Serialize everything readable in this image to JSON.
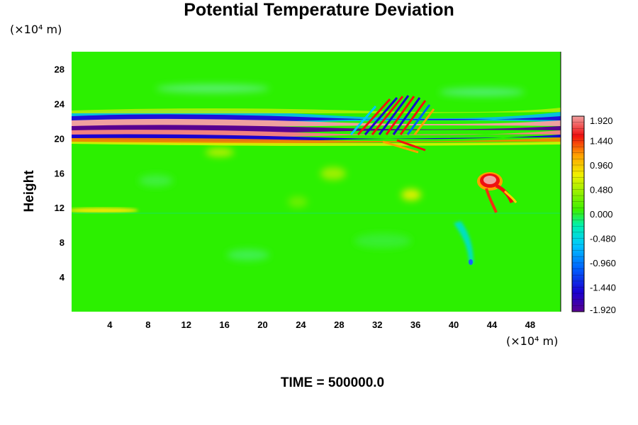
{
  "chart_data": {
    "type": "heatmap",
    "title": "Potential Temperature Deviation",
    "ylabel": "Height",
    "xlabel": "",
    "x_unit": "(×10⁴ m)",
    "y_unit": "(×10⁴ m)",
    "xlim": [
      0,
      51.2
    ],
    "ylim": [
      0,
      30
    ],
    "x_ticks": [
      "4",
      "8",
      "12",
      "16",
      "20",
      "24",
      "28",
      "32",
      "36",
      "40",
      "44",
      "48"
    ],
    "y_ticks": [
      "4",
      "8",
      "12",
      "16",
      "20",
      "24",
      "28"
    ],
    "colorbar": {
      "min": -1.92,
      "max": 1.92,
      "labels": [
        "1.920",
        "1.440",
        "0.960",
        "0.480",
        "0.000",
        "-0.480",
        "-0.960",
        "-1.440",
        "-1.920"
      ]
    },
    "background_value": 0.0,
    "features": [
      {
        "kind": "horizontal-band",
        "y_center": 21.0,
        "x_range": [
          0,
          51.2
        ],
        "value_pattern": "alternating ±1.9 layers"
      },
      {
        "kind": "wave-packet",
        "x_range": [
          29,
          37
        ],
        "y_range": [
          21,
          25
        ],
        "value_pattern": "oblique ±1.4 stripes"
      },
      {
        "kind": "warm-blob",
        "x_center": 44,
        "y_center": 14.5,
        "value": 1.9
      },
      {
        "kind": "cool-plume",
        "x_center": 41.5,
        "y_center": 8,
        "value": -0.9
      },
      {
        "kind": "weak-warm-layer",
        "x_range": [
          1,
          8
        ],
        "y_center": 11.6,
        "value": 0.5
      }
    ],
    "footer": "TIME = 500000.0"
  }
}
